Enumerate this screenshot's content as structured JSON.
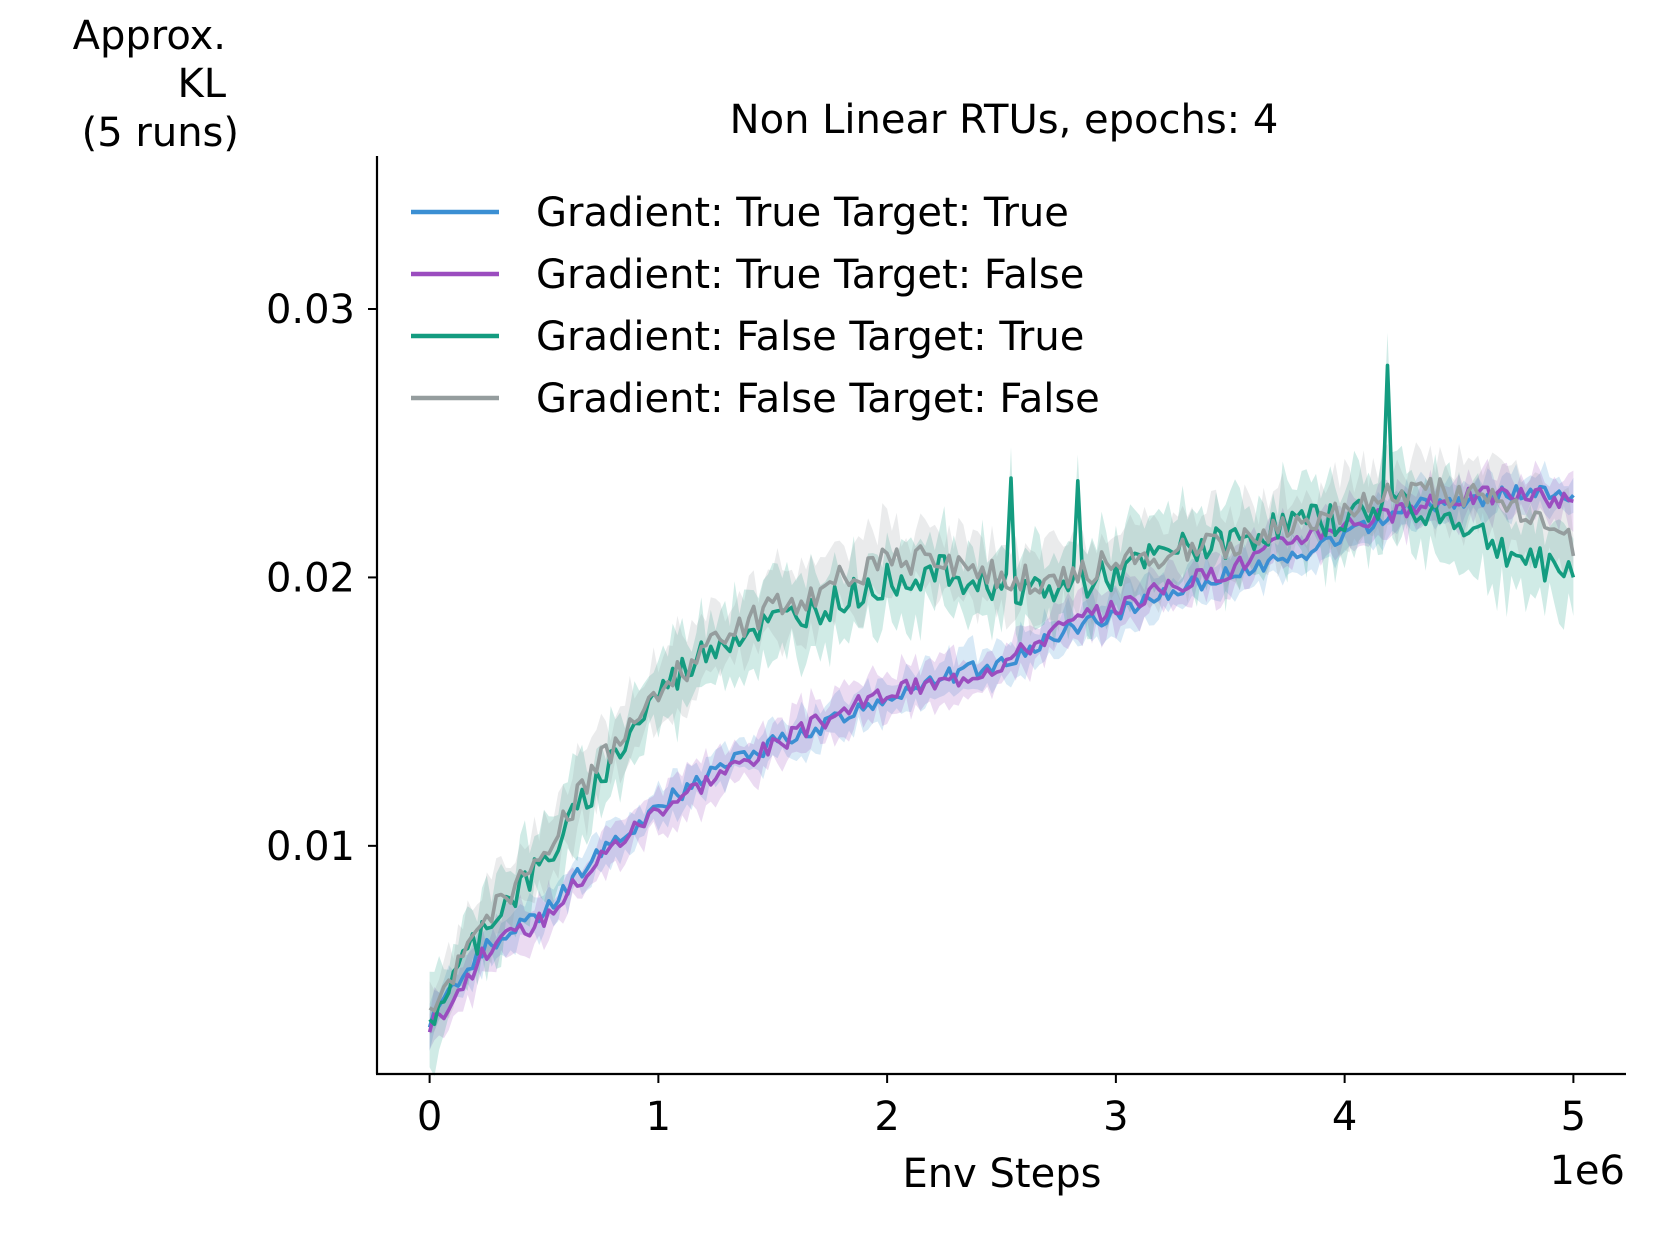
{
  "chart_data": {
    "type": "line",
    "title": "Non Linear RTUs, epochs: 4",
    "ylabel_lines": [
      "Approx.",
      "KL",
      "(5 runs)"
    ],
    "xlabel": "Env Steps",
    "x_offset_label": "1e6",
    "xlim": [
      -0.23,
      5.23
    ],
    "ylim": [
      0.0015,
      0.0357
    ],
    "xticks": [
      0,
      1,
      2,
      3,
      4,
      5
    ],
    "xtick_labels": [
      "0",
      "1",
      "2",
      "3",
      "4",
      "5"
    ],
    "yticks": [
      0.01,
      0.02,
      0.03
    ],
    "ytick_labels": [
      "0.01",
      "0.02",
      "0.03"
    ],
    "grid": false,
    "legend_position": "top-left",
    "x": [
      0,
      0.25,
      0.5,
      0.75,
      1.0,
      1.25,
      1.5,
      1.75,
      2.0,
      2.25,
      2.5,
      2.75,
      3.0,
      3.25,
      3.5,
      3.75,
      4.0,
      4.25,
      4.5,
      4.75,
      5.0
    ],
    "series": [
      {
        "name": "Gradient: True Target: True",
        "color": "#3b8fd3",
        "values": [
          0.0035,
          0.0063,
          0.0075,
          0.0098,
          0.0115,
          0.0128,
          0.0138,
          0.0146,
          0.0155,
          0.0163,
          0.0168,
          0.0179,
          0.0187,
          0.0195,
          0.0201,
          0.0207,
          0.0215,
          0.0226,
          0.0228,
          0.0232,
          0.0229
        ],
        "band": 0.0007
      },
      {
        "name": "Gradient: True Target: False",
        "color": "#9b4dbf",
        "values": [
          0.0032,
          0.0061,
          0.0073,
          0.0096,
          0.0114,
          0.0126,
          0.0137,
          0.0148,
          0.0157,
          0.0161,
          0.0168,
          0.0181,
          0.0189,
          0.0197,
          0.0203,
          0.0214,
          0.022,
          0.0224,
          0.023,
          0.0231,
          0.0228
        ],
        "band": 0.0008
      },
      {
        "name": "Gradient: False Target: True",
        "color": "#149c80",
        "values": [
          0.0035,
          0.0072,
          0.0093,
          0.0126,
          0.0157,
          0.0176,
          0.0183,
          0.019,
          0.0199,
          0.0202,
          0.0197,
          0.0195,
          0.0201,
          0.021,
          0.0213,
          0.022,
          0.0222,
          0.0229,
          0.0221,
          0.0208,
          0.0202
        ],
        "band": 0.0014,
        "spikes": [
          {
            "x": 2.55,
            "y": 0.0237
          },
          {
            "x": 2.83,
            "y": 0.0236
          },
          {
            "x": 4.19,
            "y": 0.0279
          }
        ]
      },
      {
        "name": "Gradient: False Target: False",
        "color": "#959d9e",
        "values": [
          0.0037,
          0.0074,
          0.0098,
          0.0132,
          0.0157,
          0.0177,
          0.0188,
          0.0197,
          0.0207,
          0.0206,
          0.02,
          0.0199,
          0.0206,
          0.021,
          0.0212,
          0.0218,
          0.0224,
          0.0232,
          0.0231,
          0.0225,
          0.0212
        ],
        "band": 0.0012
      }
    ]
  }
}
